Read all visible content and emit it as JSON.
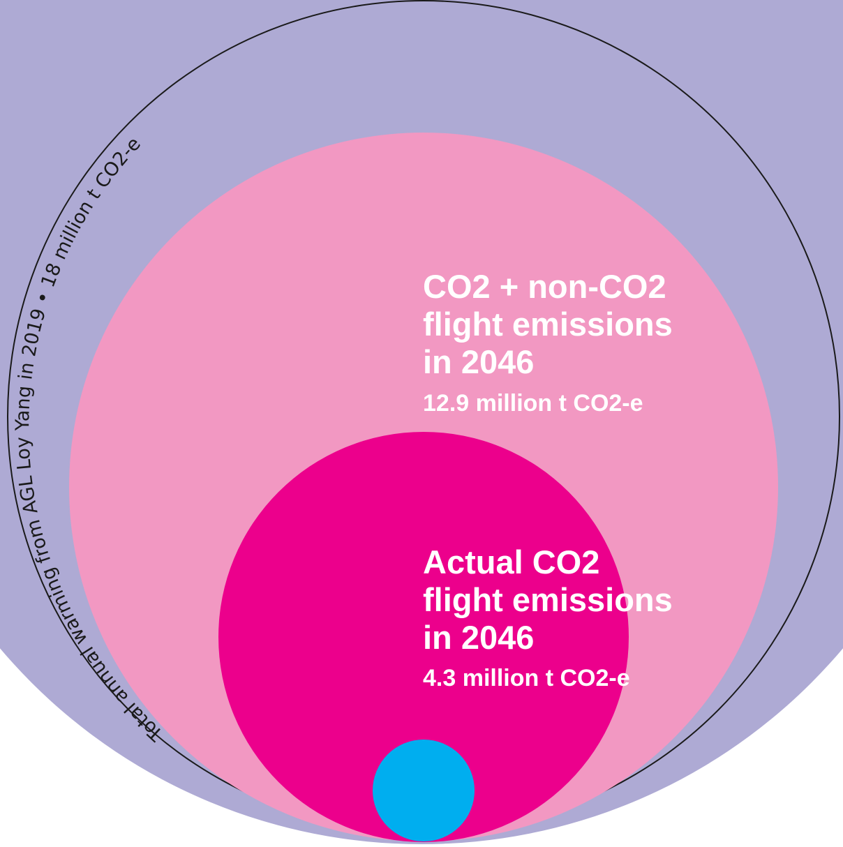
{
  "colors": {
    "background_circle": "#aeaad4",
    "outline": "#1a1a1a",
    "total_co2_non_co2": "#f298c2",
    "actual_co2": "#ec008c",
    "small_circle": "#00aeef",
    "label_text": "#ffffff"
  },
  "chart_data": {
    "type": "nested-bubble",
    "unit": "million t CO2-e",
    "circles": [
      {
        "key": "agl",
        "value": 18,
        "color": "#aeaad4",
        "arc_label": "Total annual warming from AGL Loy Yang in 2019 • 18 million t CO2-e"
      },
      {
        "key": "co2_non_co2",
        "value": 12.9,
        "color": "#f298c2",
        "title_lines": [
          "CO2 + non-CO2",
          "flight emissions",
          "in 2046"
        ],
        "value_label": "12.9 million t CO2-e"
      },
      {
        "key": "actual_co2",
        "value": 4.3,
        "color": "#ec008c",
        "title_lines": [
          "Actual CO2",
          "flight emissions",
          "in 2046"
        ],
        "value_label": "4.3 million t CO2-e"
      },
      {
        "key": "small",
        "color": "#00aeef"
      }
    ]
  }
}
